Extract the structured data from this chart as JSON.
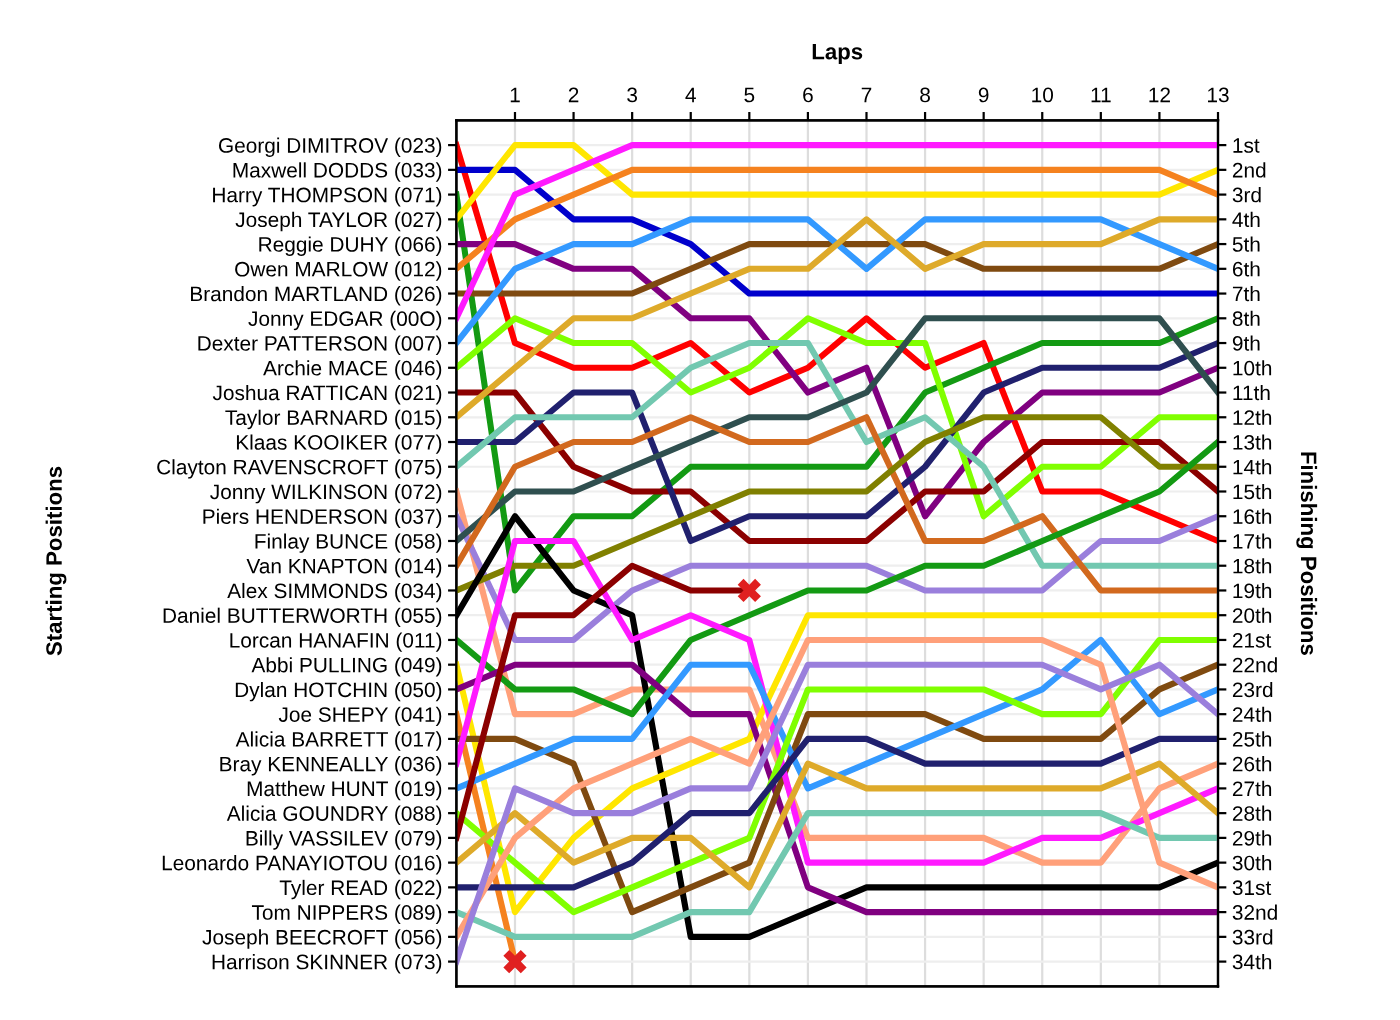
{
  "chart_data": {
    "type": "line",
    "xlabel": "Laps",
    "annotations": [
      "Starting Positions"
    ],
    "y2label": "Finishing Positions",
    "x": [
      0,
      1,
      2,
      3,
      4,
      5,
      6,
      7,
      8,
      9,
      10,
      11,
      12,
      13
    ],
    "xlim": [
      0,
      13
    ],
    "xticks": [
      1,
      2,
      3,
      4,
      5,
      6,
      7,
      8,
      9,
      10,
      11,
      12,
      13
    ],
    "y_categories": [
      "Georgi DIMITROV (023)",
      "Maxwell DODDS (033)",
      "Harry THOMPSON (071)",
      "Joseph TAYLOR (027)",
      "Reggie DUHY (066)",
      "Owen MARLOW (012)",
      "Brandon MARTLAND (026)",
      "Jonny EDGAR (00O)",
      "Dexter PATTERSON (007)",
      "Archie MACE (046)",
      "Joshua RATTICAN (021)",
      "Taylor BARNARD (015)",
      "Klaas KOOIKER (077)",
      "Clayton RAVENSCROFT (075)",
      "Jonny WILKINSON (072)",
      "Piers HENDERSON (037)",
      "Finlay BUNCE (058)",
      "Van KNAPTON (014)",
      "Alex SIMMONDS (034)",
      "Daniel BUTTERWORTH (055)",
      "Lorcan HANAFIN (011)",
      "Abbi PULLING (049)",
      "Dylan HOTCHIN (050)",
      "Joe SHEPY (041)",
      "Alicia BARRETT (017)",
      "Bray KENNEALLY (036)",
      "Matthew HUNT (019)",
      "Alicia GOUNDRY (088)",
      "Billy VASSILEV (079)",
      "Leonardo PANAYIOTOU (016)",
      "Tyler READ (022)",
      "Tom NIPPERS (089)",
      "Joseph BEECROFT (056)",
      "Harrison SKINNER (073)"
    ],
    "y2lim": [
      35,
      0
    ],
    "y2ticks": [
      {
        "value": 1,
        "label": "1st"
      },
      {
        "value": 2,
        "label": "2nd"
      },
      {
        "value": 3,
        "label": "3rd"
      },
      {
        "value": 4,
        "label": "4th"
      },
      {
        "value": 5,
        "label": "5th"
      },
      {
        "value": 6,
        "label": "6th"
      },
      {
        "value": 7,
        "label": "7th"
      },
      {
        "value": 8,
        "label": "8th"
      },
      {
        "value": 9,
        "label": "9th"
      },
      {
        "value": 10,
        "label": "10th"
      },
      {
        "value": 11,
        "label": "11th"
      },
      {
        "value": 12,
        "label": "12th"
      },
      {
        "value": 13,
        "label": "13th"
      },
      {
        "value": 14,
        "label": "14th"
      },
      {
        "value": 15,
        "label": "15th"
      },
      {
        "value": 16,
        "label": "16th"
      },
      {
        "value": 17,
        "label": "17th"
      },
      {
        "value": 18,
        "label": "18th"
      },
      {
        "value": 19,
        "label": "19th"
      },
      {
        "value": 20,
        "label": "20th"
      },
      {
        "value": 21,
        "label": "21st"
      },
      {
        "value": 22,
        "label": "22nd"
      },
      {
        "value": 23,
        "label": "23rd"
      },
      {
        "value": 24,
        "label": "24th"
      },
      {
        "value": 25,
        "label": "25th"
      },
      {
        "value": 26,
        "label": "26th"
      },
      {
        "value": 27,
        "label": "27th"
      },
      {
        "value": 28,
        "label": "28th"
      },
      {
        "value": 29,
        "label": "29th"
      },
      {
        "value": 30,
        "label": "30th"
      },
      {
        "value": 31,
        "label": "31st"
      },
      {
        "value": 32,
        "label": "32nd"
      },
      {
        "value": 33,
        "label": "33rd"
      },
      {
        "value": 34,
        "label": "34th"
      }
    ],
    "grid": true,
    "marker": "none",
    "line_style": "solid",
    "series": [
      {
        "axis": "y2",
        "color": "#ff0000",
        "values": [
          1,
          9,
          10,
          10,
          9,
          11,
          10,
          8,
          10,
          9,
          15,
          15,
          16,
          17
        ]
      },
      {
        "axis": "y2",
        "color": "#0000cc",
        "values": [
          2,
          2,
          4,
          4,
          5,
          7,
          7,
          7,
          7,
          7,
          7,
          7,
          7,
          7
        ]
      },
      {
        "axis": "y2",
        "color": "#139a13",
        "values": [
          3,
          19,
          16,
          16,
          14,
          14,
          14,
          14,
          11,
          10,
          9,
          9,
          9,
          8
        ]
      },
      {
        "axis": "y2",
        "color": "#ffe600",
        "values": [
          4,
          1,
          1,
          3,
          3,
          3,
          3,
          3,
          3,
          3,
          3,
          3,
          3,
          2
        ]
      },
      {
        "axis": "y2",
        "color": "#800080",
        "values": [
          5,
          5,
          6,
          6,
          8,
          8,
          11,
          10,
          16,
          13,
          11,
          11,
          11,
          10
        ]
      },
      {
        "axis": "y2",
        "color": "#f5821f",
        "values": [
          6,
          4,
          3,
          2,
          2,
          2,
          2,
          2,
          2,
          2,
          2,
          2,
          2,
          3
        ]
      },
      {
        "axis": "y2",
        "color": "#7f4a10",
        "values": [
          7,
          7,
          7,
          7,
          6,
          5,
          5,
          5,
          5,
          6,
          6,
          6,
          6,
          5
        ]
      },
      {
        "axis": "y2",
        "color": "#ff1aff",
        "values": [
          8,
          3,
          2,
          1,
          1,
          1,
          1,
          1,
          1,
          1,
          1,
          1,
          1,
          1
        ]
      },
      {
        "axis": "y2",
        "color": "#3399ff",
        "values": [
          9,
          6,
          5,
          5,
          4,
          4,
          4,
          6,
          4,
          4,
          4,
          4,
          5,
          6
        ]
      },
      {
        "axis": "y2",
        "color": "#80ff00",
        "values": [
          10,
          8,
          9,
          9,
          11,
          10,
          8,
          9,
          9,
          16,
          14,
          14,
          12,
          12
        ]
      },
      {
        "axis": "y2",
        "color": "#8b0000",
        "values": [
          11,
          11,
          14,
          15,
          15,
          17,
          17,
          17,
          15,
          15,
          13,
          13,
          13,
          15
        ]
      },
      {
        "axis": "y2",
        "color": "#deaa2a",
        "values": [
          12,
          10,
          8,
          8,
          7,
          6,
          6,
          4,
          6,
          5,
          5,
          5,
          4,
          4
        ]
      },
      {
        "axis": "y2",
        "color": "#20206e",
        "values": [
          13,
          13,
          11,
          11,
          17,
          16,
          16,
          16,
          14,
          11,
          10,
          10,
          10,
          9
        ]
      },
      {
        "axis": "y2",
        "color": "#72c8b0",
        "values": [
          14,
          12,
          12,
          12,
          10,
          9,
          9,
          13,
          12,
          14,
          18,
          18,
          18,
          18
        ]
      },
      {
        "axis": "y2",
        "color": "#ffa07a",
        "values": [
          15,
          24,
          24,
          23,
          23,
          23,
          29,
          29,
          29,
          29,
          30,
          30,
          27,
          26
        ]
      },
      {
        "axis": "y2",
        "color": "#9a7fdc",
        "values": [
          16,
          21,
          21,
          19,
          18,
          18,
          18,
          18,
          19,
          19,
          19,
          17,
          17,
          16
        ]
      },
      {
        "axis": "y2",
        "color": "#2f4f4f",
        "values": [
          17,
          15,
          15,
          14,
          13,
          12,
          12,
          11,
          8,
          8,
          8,
          8,
          8,
          11
        ]
      },
      {
        "axis": "y2",
        "color": "#d2691e",
        "values": [
          18,
          14,
          13,
          13,
          12,
          13,
          13,
          12,
          17,
          17,
          16,
          19,
          19,
          19
        ]
      },
      {
        "axis": "y2",
        "color": "#808000",
        "values": [
          19,
          18,
          18,
          17,
          16,
          15,
          15,
          15,
          13,
          12,
          12,
          12,
          14,
          14
        ]
      },
      {
        "axis": "y2",
        "color": "#000000",
        "values": [
          20,
          16,
          19,
          20,
          33,
          33,
          32,
          31,
          31,
          31,
          31,
          31,
          31,
          30
        ]
      },
      {
        "axis": "y2",
        "color": "#139a13",
        "values": [
          21,
          23,
          23,
          24,
          21,
          20,
          19,
          19,
          18,
          18,
          17,
          16,
          15,
          13
        ]
      },
      {
        "axis": "y2",
        "color": "#ffe600",
        "values": [
          22,
          32,
          29,
          27,
          26,
          25,
          20,
          20,
          20,
          20,
          20,
          20,
          20,
          20
        ]
      },
      {
        "axis": "y2",
        "color": "#800080",
        "values": [
          23,
          22,
          22,
          22,
          24,
          24,
          31,
          32,
          32,
          32,
          32,
          32,
          32,
          32
        ]
      },
      {
        "axis": "y2",
        "color": "#f5821f",
        "values": [
          24,
          34,
          null,
          null,
          null,
          null,
          null,
          null,
          null,
          null,
          null,
          null,
          null,
          null
        ]
      },
      {
        "axis": "y2",
        "color": "#7f4a10",
        "values": [
          25,
          25,
          26,
          32,
          31,
          30,
          24,
          24,
          24,
          25,
          25,
          25,
          23,
          22
        ]
      },
      {
        "axis": "y2",
        "color": "#ff1aff",
        "values": [
          26,
          17,
          17,
          21,
          20,
          21,
          30,
          30,
          30,
          30,
          29,
          29,
          28,
          27
        ]
      },
      {
        "axis": "y2",
        "color": "#3399ff",
        "values": [
          27,
          26,
          25,
          25,
          22,
          22,
          27,
          26,
          25,
          24,
          23,
          21,
          24,
          23
        ]
      },
      {
        "axis": "y2",
        "color": "#80ff00",
        "values": [
          28,
          30,
          32,
          31,
          30,
          29,
          23,
          23,
          23,
          23,
          24,
          24,
          21,
          21
        ]
      },
      {
        "axis": "y2",
        "color": "#8b0000",
        "values": [
          29,
          20,
          20,
          18,
          19,
          19,
          null,
          null,
          null,
          null,
          null,
          null,
          null,
          null
        ]
      },
      {
        "axis": "y2",
        "color": "#deaa2a",
        "values": [
          30,
          28,
          30,
          29,
          29,
          31,
          26,
          27,
          27,
          27,
          27,
          27,
          26,
          28
        ]
      },
      {
        "axis": "y2",
        "color": "#20206e",
        "values": [
          31,
          31,
          31,
          30,
          28,
          28,
          25,
          25,
          26,
          26,
          26,
          26,
          25,
          25
        ]
      },
      {
        "axis": "y2",
        "color": "#72c8b0",
        "values": [
          32,
          33,
          33,
          33,
          32,
          32,
          28,
          28,
          28,
          28,
          28,
          28,
          29,
          29
        ]
      },
      {
        "axis": "y2",
        "color": "#ffa07a",
        "values": [
          33,
          29,
          27,
          26,
          25,
          26,
          21,
          21,
          21,
          21,
          21,
          22,
          30,
          31
        ]
      },
      {
        "axis": "y2",
        "color": "#9a7fdc",
        "values": [
          34,
          27,
          28,
          28,
          27,
          27,
          22,
          22,
          22,
          22,
          22,
          23,
          22,
          24
        ]
      },
      {
        "axis": "y2",
        "type": "scatter",
        "marker": "cross",
        "color": "#e02020",
        "x": [
          5,
          1
        ],
        "values": [
          19,
          34
        ]
      }
    ]
  }
}
